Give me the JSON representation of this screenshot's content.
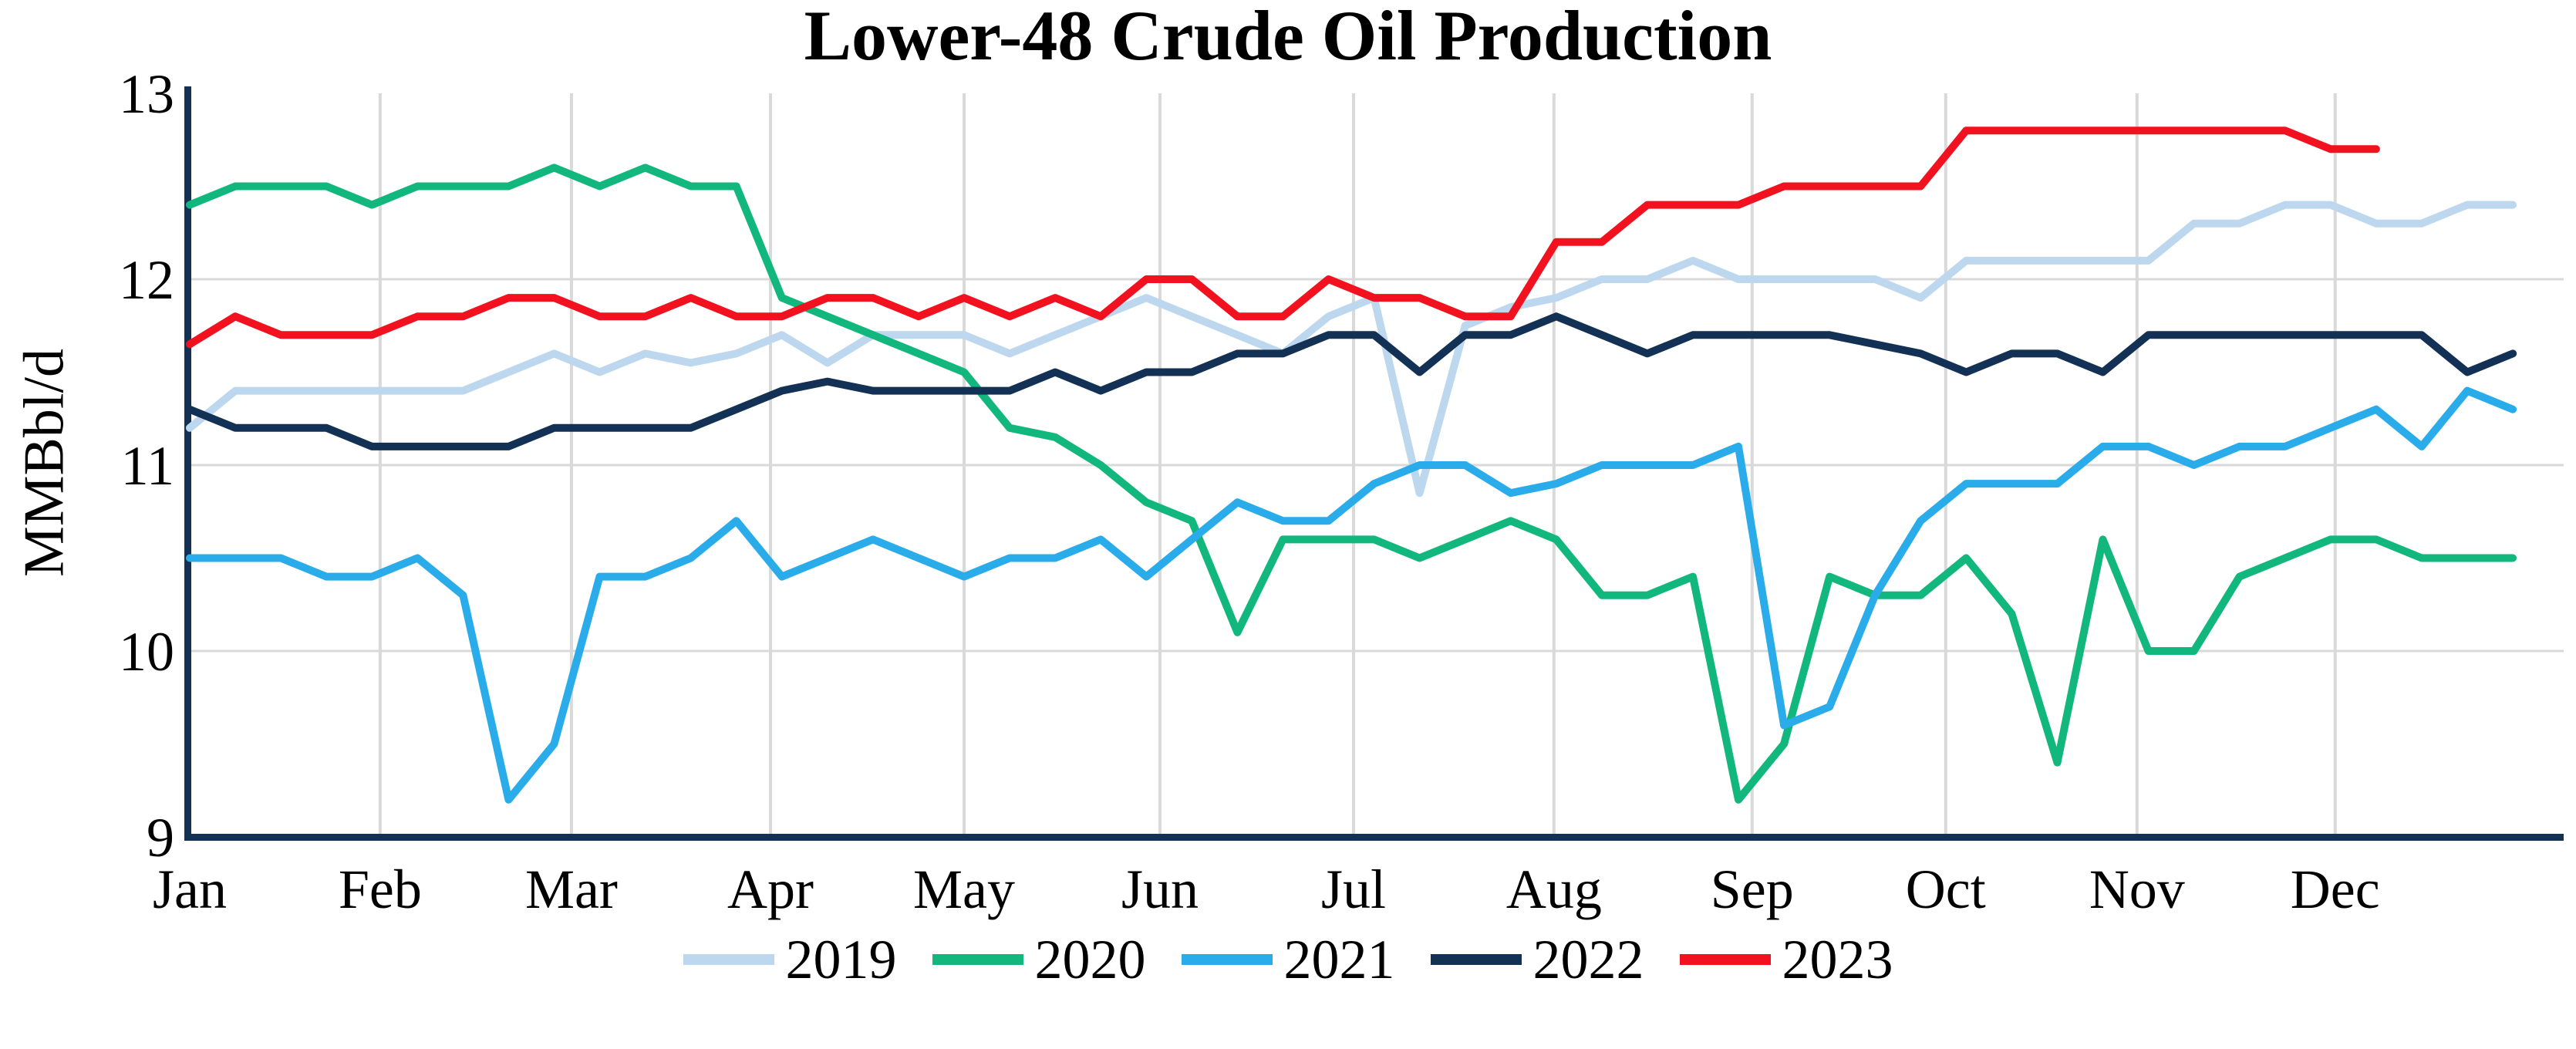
{
  "title": "Lower-48 Crude Oil Production",
  "y_axis": {
    "label": "MMBbl/d",
    "ticks": [
      "13",
      "12",
      "11",
      "10",
      "9"
    ],
    "min": 9,
    "max": 13
  },
  "x_axis": {
    "months": [
      "Jan",
      "Feb",
      "Mar",
      "Apr",
      "May",
      "Jun",
      "Jul",
      "Aug",
      "Sep",
      "Oct",
      "Nov",
      "Dec"
    ]
  },
  "legend": {
    "items": [
      {
        "label": "2019",
        "color": "#BDD7EE"
      },
      {
        "label": "2020",
        "color": "#12B77E"
      },
      {
        "label": "2021",
        "color": "#29ACE9"
      },
      {
        "label": "2022",
        "color": "#123155"
      },
      {
        "label": "2023",
        "color": "#F2121F"
      }
    ]
  },
  "chart_data": {
    "type": "line",
    "title": "Lower-48 Crude Oil Production",
    "xlabel": "",
    "ylabel": "MMBbl/d",
    "ylim": [
      9,
      13
    ],
    "grid": "on",
    "legend_position": "bottom",
    "x_unit": "week of year (weekly data)",
    "categories_months": [
      "Jan",
      "Feb",
      "Mar",
      "Apr",
      "May",
      "Jun",
      "Jul",
      "Aug",
      "Sep",
      "Oct",
      "Nov",
      "Dec"
    ],
    "month_week_offsets": [
      0,
      4.18,
      8.38,
      12.75,
      17.0,
      21.3,
      25.55,
      29.95,
      34.3,
      38.55,
      42.75,
      47.1
    ],
    "series": [
      {
        "name": "2019",
        "color": "#BDD7EE",
        "values": [
          11.2,
          11.4,
          11.4,
          11.4,
          11.4,
          11.4,
          11.4,
          11.5,
          11.6,
          11.5,
          11.6,
          11.55,
          11.6,
          11.7,
          11.55,
          11.7,
          11.7,
          11.7,
          11.6,
          11.7,
          11.8,
          11.9,
          11.8,
          11.7,
          11.6,
          11.8,
          11.9,
          10.85,
          11.75,
          11.85,
          11.9,
          12.0,
          12.0,
          12.1,
          12.0,
          12.0,
          12.0,
          12.0,
          11.9,
          12.1,
          12.1,
          12.1,
          12.1,
          12.1,
          12.3,
          12.3,
          12.4,
          12.4,
          12.3,
          12.3,
          12.4,
          12.4
        ]
      },
      {
        "name": "2020",
        "color": "#12B77E",
        "values": [
          12.4,
          12.5,
          12.5,
          12.5,
          12.4,
          12.5,
          12.5,
          12.5,
          12.6,
          12.5,
          12.6,
          12.5,
          12.5,
          11.9,
          11.8,
          11.7,
          11.6,
          11.5,
          11.2,
          11.15,
          11.0,
          10.8,
          10.7,
          10.1,
          10.6,
          10.6,
          10.6,
          10.5,
          10.6,
          10.7,
          10.6,
          10.3,
          10.3,
          10.4,
          9.2,
          9.5,
          10.4,
          10.3,
          10.3,
          10.5,
          10.2,
          9.4,
          10.6,
          10.0,
          10.0,
          10.4,
          10.5,
          10.6,
          10.6,
          10.5,
          10.5,
          10.5
        ]
      },
      {
        "name": "2021",
        "color": "#29ACE9",
        "values": [
          10.5,
          10.5,
          10.5,
          10.4,
          10.4,
          10.5,
          10.3,
          9.2,
          9.5,
          10.4,
          10.4,
          10.5,
          10.7,
          10.4,
          10.5,
          10.6,
          10.5,
          10.4,
          10.5,
          10.5,
          10.6,
          10.4,
          10.6,
          10.8,
          10.7,
          10.7,
          10.9,
          11.0,
          11.0,
          10.85,
          10.9,
          11.0,
          11.0,
          11.0,
          11.1,
          9.6,
          9.7,
          10.3,
          10.7,
          10.9,
          10.9,
          10.9,
          11.1,
          11.1,
          11.0,
          11.1,
          11.1,
          11.2,
          11.3,
          11.1,
          11.4,
          11.3
        ]
      },
      {
        "name": "2022",
        "color": "#123155",
        "values": [
          11.3,
          11.2,
          11.2,
          11.2,
          11.1,
          11.1,
          11.1,
          11.1,
          11.2,
          11.2,
          11.2,
          11.2,
          11.3,
          11.4,
          11.45,
          11.4,
          11.4,
          11.4,
          11.4,
          11.5,
          11.4,
          11.5,
          11.5,
          11.6,
          11.6,
          11.7,
          11.7,
          11.5,
          11.7,
          11.7,
          11.8,
          11.7,
          11.6,
          11.7,
          11.7,
          11.7,
          11.7,
          11.65,
          11.6,
          11.5,
          11.6,
          11.6,
          11.5,
          11.7,
          11.7,
          11.7,
          11.7,
          11.7,
          11.7,
          11.7,
          11.5,
          11.6
        ]
      },
      {
        "name": "2023",
        "color": "#F2121F",
        "values": [
          11.65,
          11.8,
          11.7,
          11.7,
          11.7,
          11.8,
          11.8,
          11.9,
          11.9,
          11.8,
          11.8,
          11.9,
          11.8,
          11.8,
          11.9,
          11.9,
          11.8,
          11.9,
          11.8,
          11.9,
          11.8,
          12.0,
          12.0,
          11.8,
          11.8,
          12.0,
          11.9,
          11.9,
          11.8,
          11.8,
          12.2,
          12.2,
          12.4,
          12.4,
          12.4,
          12.5,
          12.5,
          12.5,
          12.5,
          12.8,
          12.8,
          12.8,
          12.8,
          12.8,
          12.8,
          12.8,
          12.8,
          12.7,
          12.7
        ]
      }
    ]
  },
  "style": {
    "gridline_color": "#D9D9D9",
    "axis_color": "#123155",
    "background": "#ffffff"
  }
}
